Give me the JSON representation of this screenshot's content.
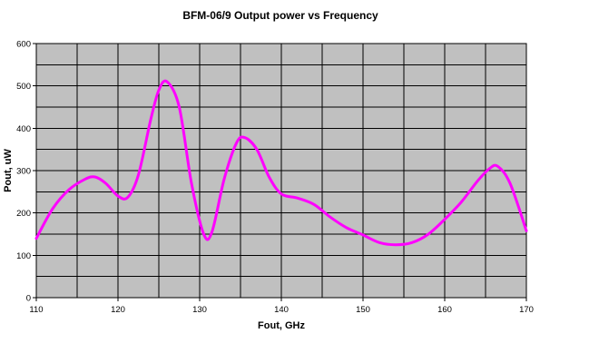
{
  "chart_data": {
    "type": "line",
    "title": "BFM-06/9 Output power vs Frequency",
    "xlabel": "Fout, GHz",
    "ylabel": "Pout, uW",
    "xlim": [
      110,
      170
    ],
    "ylim": [
      0,
      600
    ],
    "x_ticks": [
      "110",
      "120",
      "130",
      "140",
      "150",
      "160",
      "170"
    ],
    "y_ticks": [
      "0",
      "100",
      "200",
      "300",
      "400",
      "500",
      "600"
    ],
    "x_minor_step": 5,
    "y_minor_step": 50,
    "grid": true,
    "legend": "none",
    "colors": {
      "plot_background": "#c0c0c0",
      "grid": "#000000",
      "line": "#ff00ff"
    },
    "series": [
      {
        "x": [
          110,
          112,
          114,
          116,
          117.2,
          118.5,
          120,
          121.2,
          122.5,
          124,
          125,
          126,
          127.5,
          129,
          130.5,
          131.5,
          133,
          134.5,
          135.5,
          137,
          138.5,
          140,
          142,
          144,
          146,
          148,
          150,
          152,
          154,
          156,
          158,
          160,
          162,
          164,
          165.5,
          166.5,
          168,
          170
        ],
        "y": [
          140,
          210,
          255,
          280,
          285,
          270,
          240,
          237,
          290,
          420,
          490,
          510,
          450,
          270,
          150,
          155,
          280,
          365,
          378,
          350,
          285,
          245,
          235,
          220,
          190,
          165,
          148,
          130,
          125,
          130,
          150,
          185,
          225,
          275,
          305,
          310,
          270,
          158
        ]
      }
    ]
  }
}
